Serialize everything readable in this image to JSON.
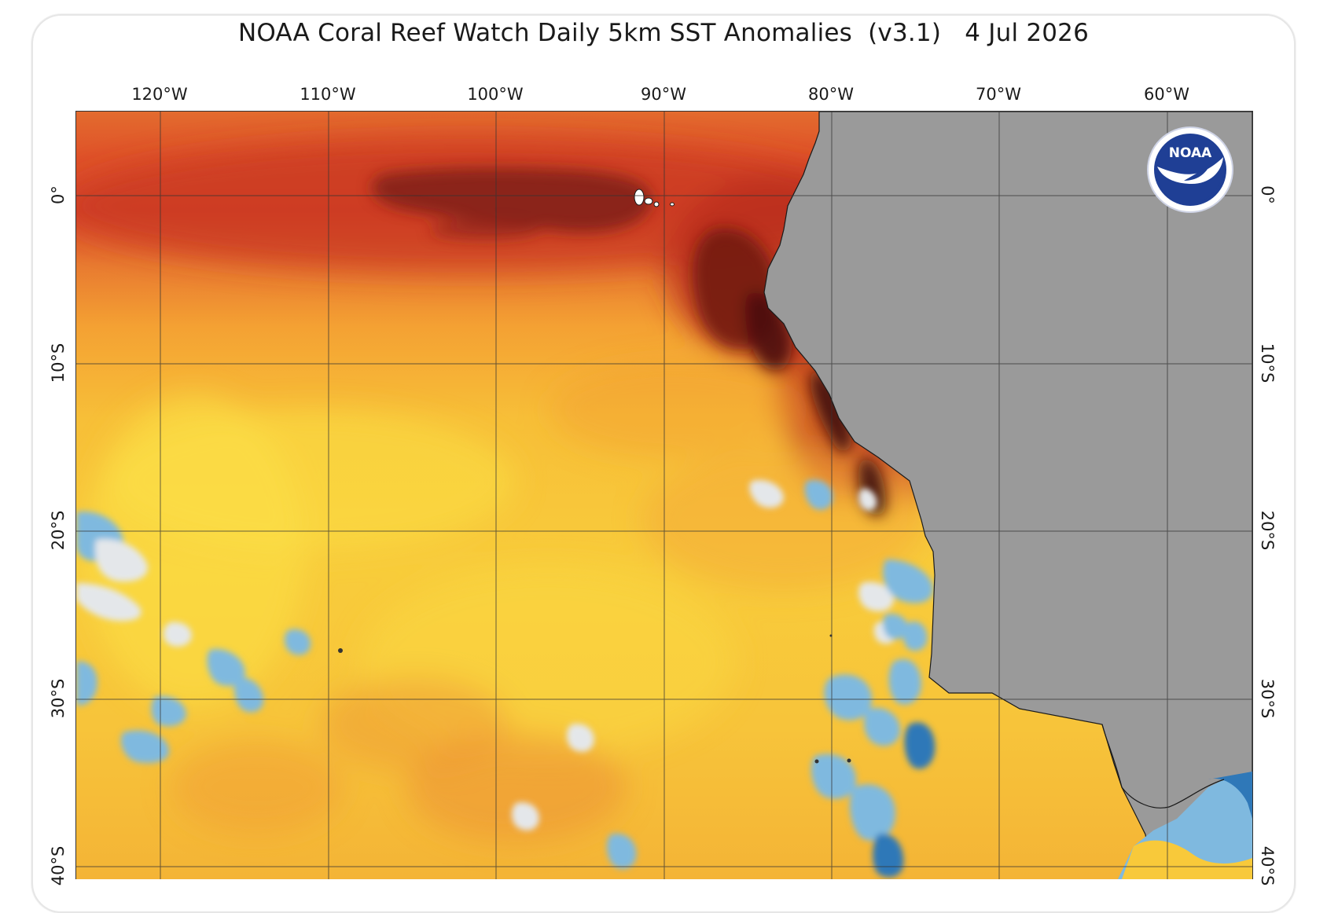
{
  "title": "NOAA Coral Reef Watch Daily 5km SST Anomalies  (v3.1)   4 Jul 2026",
  "longitude_labels": [
    "120°W",
    "110°W",
    "100°W",
    "90°W",
    "80°W",
    "70°W",
    "60°W"
  ],
  "latitude_labels_left": [
    "0°",
    "10°S",
    "20°S",
    "30°S",
    "40°S"
  ],
  "latitude_labels_right": [
    "0°",
    "10°S",
    "20°S",
    "30°S",
    "40°S"
  ],
  "logo": {
    "text": "NOAA",
    "icon": "noaa-seagull-emblem-icon"
  },
  "colors": {
    "land": "#9a9a9a",
    "anomaly_very_high": "#4e1410",
    "anomaly_high": "#a3291c",
    "anomaly_warm": "#e0582a",
    "anomaly_moderate": "#f29a2e",
    "anomaly_mild": "#f8c93a",
    "anomaly_slight": "#fbe046",
    "anomaly_near_zero": "#e4e7ea",
    "anomaly_cool": "#7fb9df",
    "anomaly_cold": "#2f78b8",
    "logo_blue": "#1f3f95"
  }
}
